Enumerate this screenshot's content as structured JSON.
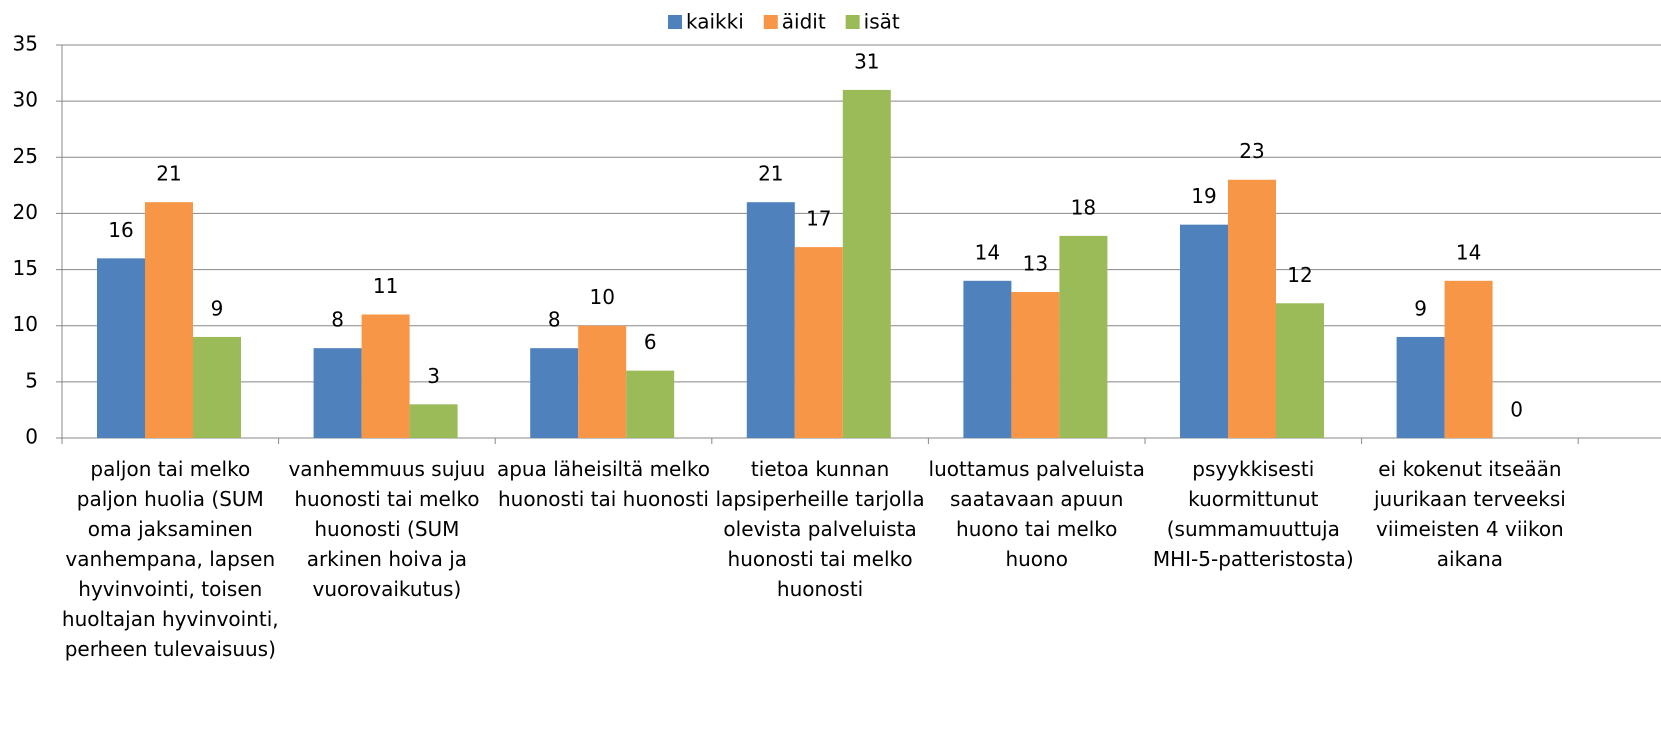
{
  "chart_data": {
    "type": "bar",
    "categories": [
      "paljon tai melko paljon huolia (SUM oma jaksaminen vanhempana, lapsen hyvinvointi, toisen huoltajan hyvinvointi, perheen tulevaisuus)",
      "vanhemmuus sujuu huonosti tai melko huonosti (SUM arkinen hoiva ja vuorovaikutus)",
      "apua läheisiltä melko huonosti tai huonosti",
      "tietoa kunnan lapsiperheille tarjolla olevista palveluista huonosti tai melko huonosti",
      "luottamus palveluista saatavaan apuun huono tai melko huono",
      "psyykkisesti kuormittunut (summamuuttuja MHI-5-patteristosta)",
      "ei kokenut itseään juurikaan terveeksi viimeisten 4 viikon aikana"
    ],
    "series": [
      {
        "name": "kaikki",
        "color": "#4f81bd",
        "values": [
          16,
          8,
          8,
          21,
          14,
          19,
          9
        ]
      },
      {
        "name": "äidit",
        "color": "#f79646",
        "values": [
          21,
          11,
          10,
          17,
          13,
          23,
          14
        ]
      },
      {
        "name": "isät",
        "color": "#9bbb59",
        "values": [
          9,
          3,
          6,
          31,
          18,
          12,
          0
        ]
      }
    ],
    "ylim": [
      0,
      35
    ],
    "yticks": [
      0,
      5,
      10,
      15,
      20,
      25,
      30,
      35
    ],
    "grid": true,
    "legend": "top"
  }
}
